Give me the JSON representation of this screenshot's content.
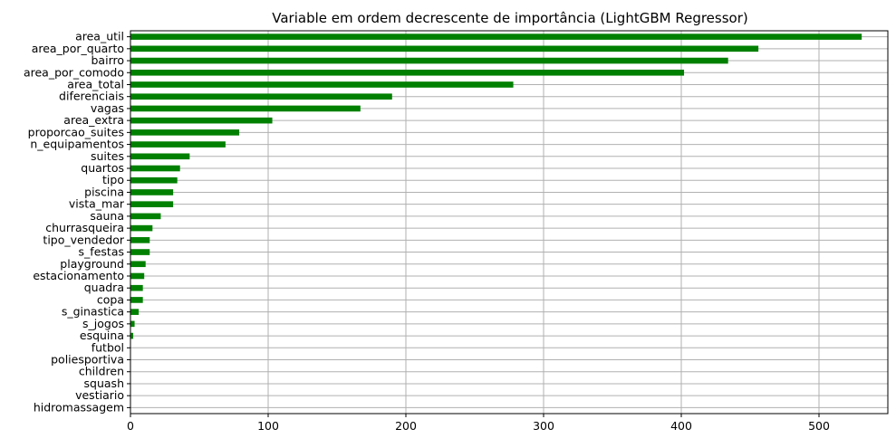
{
  "chart_data": {
    "type": "bar",
    "orientation": "horizontal",
    "title": "Variable em ordem decrescente de importância (LightGBM Regressor)",
    "xlabel": "",
    "ylabel": "",
    "xlim": [
      0,
      550
    ],
    "xticks": [
      0,
      100,
      200,
      300,
      400,
      500
    ],
    "grid": true,
    "bar_color": "#008000",
    "grid_color": "#b0b0b0",
    "categories": [
      "area_util",
      "area_por_quarto",
      "bairro",
      "area_por_comodo",
      "area_total",
      "diferenciais",
      "vagas",
      "area_extra",
      "proporcao_suites",
      "n_equipamentos",
      "suites",
      "quartos",
      "tipo",
      "piscina",
      "vista_mar",
      "sauna",
      "churrasqueira",
      "tipo_vendedor",
      "s_festas",
      "playground",
      "estacionamento",
      "quadra",
      "copa",
      "s_ginastica",
      "s_jogos",
      "esquina",
      "futbol",
      "poliesportiva",
      "children",
      "squash",
      "vestiario",
      "hidromassagem"
    ],
    "values": [
      531,
      456,
      434,
      402,
      278,
      190,
      167,
      103,
      79,
      69,
      43,
      36,
      34,
      31,
      31,
      22,
      16,
      14,
      14,
      11,
      10,
      9,
      9,
      6,
      3,
      2,
      0,
      0,
      0,
      0,
      0,
      0
    ]
  }
}
